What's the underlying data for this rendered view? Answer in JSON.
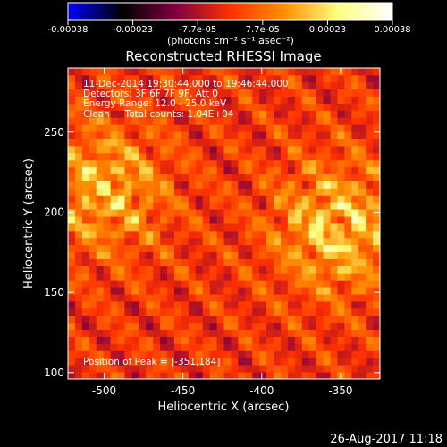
{
  "colorbar": {
    "ticks": [
      "-0.00038",
      "-0.00023",
      "-7.7e-05",
      "7.7e-05",
      "0.00023",
      "0.00038"
    ],
    "units": "(photons cm⁻² s⁻¹ asec⁻²)",
    "range": [
      -0.00038,
      0.00038
    ],
    "colormap": [
      "#0000ff",
      "#000000",
      "#800040",
      "#ff3000",
      "#ff9000",
      "#ffff80",
      "#ffffff"
    ]
  },
  "annotations": {
    "time": "11-Dec-2014 19:30:44.000 to 19:46:44.000",
    "detectors": "Detectors: 3F 6F 7F 9F, Att 0",
    "energy": "Energy Range: 12.0 - 25.0 keV",
    "clean": "Clean     Total counts: 1.04E+04",
    "peak": "Position of Peak = [-351,184]"
  },
  "footer": {
    "date": "26-Aug-2017 11:18"
  },
  "chart_data": {
    "type": "heatmap",
    "title": "Reconstructed RHESSI Image",
    "xlabel": "Heliocentric X (arcsec)",
    "ylabel": "Heliocentric Y (arcsec)",
    "xlim": [
      -523,
      -325
    ],
    "ylim": [
      96,
      290
    ],
    "xticks": [
      -500,
      -450,
      -400,
      -350
    ],
    "yticks": [
      100,
      150,
      200,
      250
    ],
    "grid": false,
    "peak": [
      -351,
      184
    ],
    "sources": [
      {
        "x": -500,
        "y": 215,
        "intensity": 0.00033
      },
      {
        "x": -352,
        "y": 190,
        "intensity": 0.00038
      }
    ]
  }
}
